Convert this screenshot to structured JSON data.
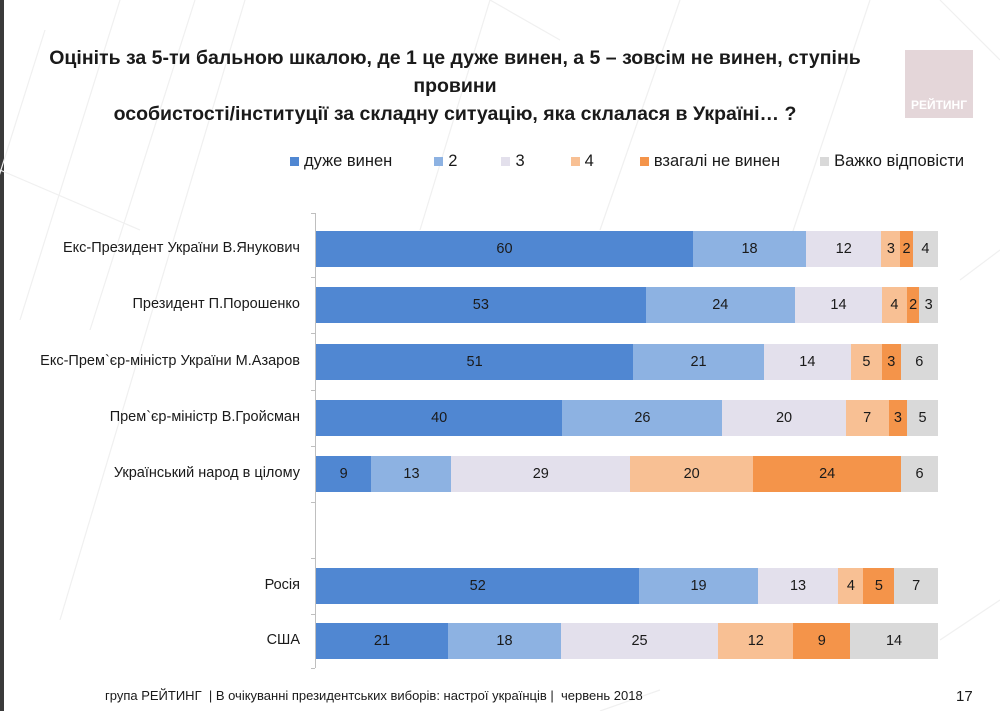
{
  "slide": {
    "title_line1": "Оцініть за 5-ти бальною шкалою, де 1 це дуже винен, а 5 – зовсім не винен, ступінь провини",
    "title_line2": "особистості/інституції за складну ситуацію, яка склалася в Україні… ?",
    "logo_text": "РЕЙТИНГ",
    "footer": "група РЕЙТИНГ  | В очікуванні президентських виборів: настрої українців |  червень 2018",
    "page_number": "17"
  },
  "chart_data": {
    "type": "bar",
    "orientation": "horizontal",
    "stacked": true,
    "title": "Оцініть за 5-ти бальною шкалою, де 1 це дуже винен, а 5 – зовсім не винен, ступінь провини особистості/інституції за складну ситуацію, яка склалася в Україні… ?",
    "xlabel": "",
    "ylabel": "",
    "xlim": [
      0,
      100
    ],
    "grid": false,
    "legend_position": "top",
    "categories": [
      "Екс-Президент України В.Янукович",
      "Президент П.Порошенко",
      "Екс-Прем`єр-міністр України М.Азаров",
      "Прем`єр-міністр В.Гройсман",
      "Український народ в цілому",
      "Росія",
      "США"
    ],
    "series": [
      {
        "name": "дуже винен",
        "color": "#5087d2",
        "values": [
          60,
          53,
          51,
          40,
          9,
          52,
          21
        ]
      },
      {
        "name": "2",
        "color": "#8db2e2",
        "values": [
          18,
          24,
          21,
          26,
          13,
          19,
          18
        ]
      },
      {
        "name": "3",
        "color": "#e3e0ec",
        "values": [
          12,
          14,
          14,
          20,
          29,
          13,
          25
        ]
      },
      {
        "name": "4",
        "color": "#f8c094",
        "values": [
          3,
          4,
          5,
          7,
          20,
          4,
          12
        ]
      },
      {
        "name": "взагалі не винен",
        "color": "#f4944a",
        "values": [
          2,
          2,
          3,
          3,
          24,
          5,
          9
        ]
      },
      {
        "name": "Важко відповісти",
        "color": "#d9d9d9",
        "values": [
          4,
          3,
          6,
          5,
          6,
          7,
          14
        ]
      }
    ]
  }
}
